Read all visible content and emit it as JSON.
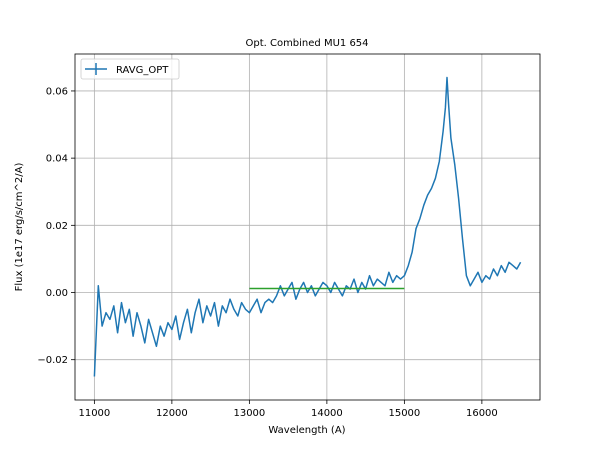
{
  "chart_data": {
    "type": "line",
    "title": "Opt. Combined MU1 654",
    "xlabel": "Wavelength (A)",
    "ylabel": "Flux (1e17 erg/s/cm^2/A)",
    "xlim": [
      10750,
      16750
    ],
    "ylim": [
      -0.032,
      0.071
    ],
    "xticks": [
      11000,
      12000,
      13000,
      14000,
      15000,
      16000
    ],
    "xtick_labels": [
      "11000",
      "12000",
      "13000",
      "14000",
      "15000",
      "16000"
    ],
    "yticks": [
      -0.02,
      0.0,
      0.02,
      0.04,
      0.06
    ],
    "ytick_labels": [
      "−0.02",
      "0.00",
      "0.02",
      "0.04",
      "0.06"
    ],
    "grid": true,
    "legend_position": "top-left",
    "series": [
      {
        "name": "RAVG_OPT",
        "color": "#1f77b4",
        "x": [
          11000,
          11050,
          11100,
          11150,
          11200,
          11250,
          11300,
          11350,
          11400,
          11450,
          11500,
          11550,
          11600,
          11650,
          11700,
          11750,
          11800,
          11850,
          11900,
          11950,
          12000,
          12050,
          12100,
          12150,
          12200,
          12250,
          12300,
          12350,
          12400,
          12450,
          12500,
          12550,
          12600,
          12650,
          12700,
          12750,
          12800,
          12850,
          12900,
          12950,
          13000,
          13050,
          13100,
          13150,
          13200,
          13250,
          13300,
          13350,
          13400,
          13450,
          13500,
          13550,
          13600,
          13650,
          13700,
          13750,
          13800,
          13850,
          13900,
          13950,
          14000,
          14050,
          14100,
          14150,
          14200,
          14250,
          14300,
          14350,
          14400,
          14450,
          14500,
          14550,
          14600,
          14650,
          14700,
          14750,
          14800,
          14850,
          14900,
          14950,
          15000,
          15050,
          15100,
          15150,
          15200,
          15250,
          15300,
          15350,
          15400,
          15450,
          15500,
          15530,
          15550,
          15570,
          15600,
          15650,
          15700,
          15750,
          15800,
          15850,
          15900,
          15950,
          16000,
          16050,
          16100,
          16150,
          16200,
          16250,
          16300,
          16350,
          16400,
          16450,
          16500
        ],
        "y": [
          -0.025,
          0.002,
          -0.01,
          -0.006,
          -0.008,
          -0.004,
          -0.012,
          -0.003,
          -0.009,
          -0.005,
          -0.013,
          -0.006,
          -0.01,
          -0.015,
          -0.008,
          -0.012,
          -0.016,
          -0.01,
          -0.013,
          -0.009,
          -0.011,
          -0.007,
          -0.014,
          -0.009,
          -0.005,
          -0.012,
          -0.006,
          -0.002,
          -0.009,
          -0.004,
          -0.007,
          -0.003,
          -0.01,
          -0.004,
          -0.006,
          -0.002,
          -0.005,
          -0.007,
          -0.003,
          -0.005,
          -0.006,
          -0.004,
          -0.002,
          -0.006,
          -0.003,
          -0.002,
          -0.003,
          -0.001,
          0.002,
          -0.001,
          0.001,
          0.003,
          -0.002,
          0.001,
          0.003,
          0.0,
          0.002,
          -0.001,
          0.001,
          0.003,
          0.002,
          0.0,
          0.003,
          0.001,
          -0.001,
          0.002,
          0.001,
          0.004,
          0.0,
          0.003,
          0.001,
          0.005,
          0.002,
          0.004,
          0.003,
          0.002,
          0.006,
          0.003,
          0.005,
          0.004,
          0.005,
          0.008,
          0.012,
          0.019,
          0.022,
          0.026,
          0.029,
          0.031,
          0.034,
          0.039,
          0.048,
          0.055,
          0.064,
          0.056,
          0.046,
          0.038,
          0.028,
          0.016,
          0.005,
          0.002,
          0.004,
          0.006,
          0.003,
          0.005,
          0.004,
          0.007,
          0.005,
          0.008,
          0.006,
          0.009,
          0.008,
          0.007,
          0.009
        ]
      },
      {
        "name": "",
        "color": "#2ca02c",
        "x": [
          13000,
          15000
        ],
        "y": [
          0.0012,
          0.0012
        ]
      }
    ]
  }
}
